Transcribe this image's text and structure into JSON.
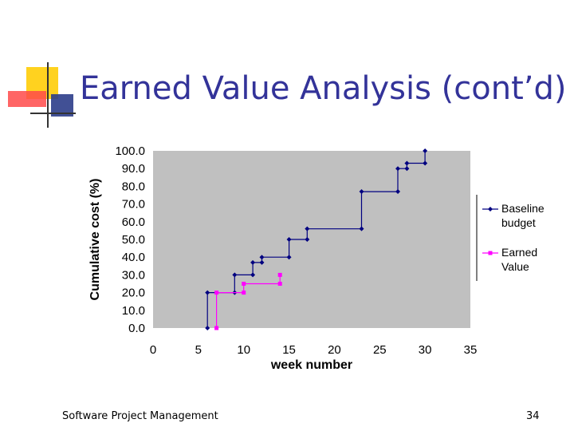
{
  "slide": {
    "title": "Earned Value Analysis (cont’d)",
    "footer": "Software Project Management",
    "page_number": "34"
  },
  "colors": {
    "title": "#333399",
    "plot_bg": "#c0c0c0",
    "baseline": "#000080",
    "earned": "#ff00ff",
    "logo_yellow": "#ffd21f",
    "logo_red": "#ff4a4a",
    "logo_blue": "#2c3d8a"
  },
  "chart_data": {
    "type": "line",
    "xlabel": "week number",
    "ylabel": "Cumulative cost (%)",
    "xlim": [
      0,
      35
    ],
    "ylim": [
      0,
      100
    ],
    "x_ticks": [
      "0",
      "5",
      "10",
      "15",
      "20",
      "25",
      "30",
      "35"
    ],
    "y_ticks": [
      "0.0",
      "10.0",
      "20.0",
      "30.0",
      "40.0",
      "50.0",
      "60.0",
      "70.0",
      "80.0",
      "90.0",
      "100.0"
    ],
    "grid": false,
    "legend_position": "right",
    "series": [
      {
        "name": "Baseline budget",
        "color": "#000080",
        "marker": "diamond",
        "points": [
          [
            6,
            0
          ],
          [
            6,
            20
          ],
          [
            9,
            20
          ],
          [
            9,
            30
          ],
          [
            11,
            30
          ],
          [
            11,
            37
          ],
          [
            12,
            37
          ],
          [
            12,
            40
          ],
          [
            15,
            40
          ],
          [
            15,
            50
          ],
          [
            17,
            50
          ],
          [
            17,
            56
          ],
          [
            23,
            56
          ],
          [
            23,
            77
          ],
          [
            27,
            77
          ],
          [
            27,
            90
          ],
          [
            28,
            90
          ],
          [
            28,
            93
          ],
          [
            30,
            93
          ],
          [
            30,
            100
          ]
        ]
      },
      {
        "name": "Earned Value",
        "color": "#ff00ff",
        "marker": "square",
        "points": [
          [
            7,
            0
          ],
          [
            7,
            20
          ],
          [
            10,
            20
          ],
          [
            10,
            25
          ],
          [
            14,
            25
          ],
          [
            14,
            30
          ]
        ]
      }
    ]
  }
}
